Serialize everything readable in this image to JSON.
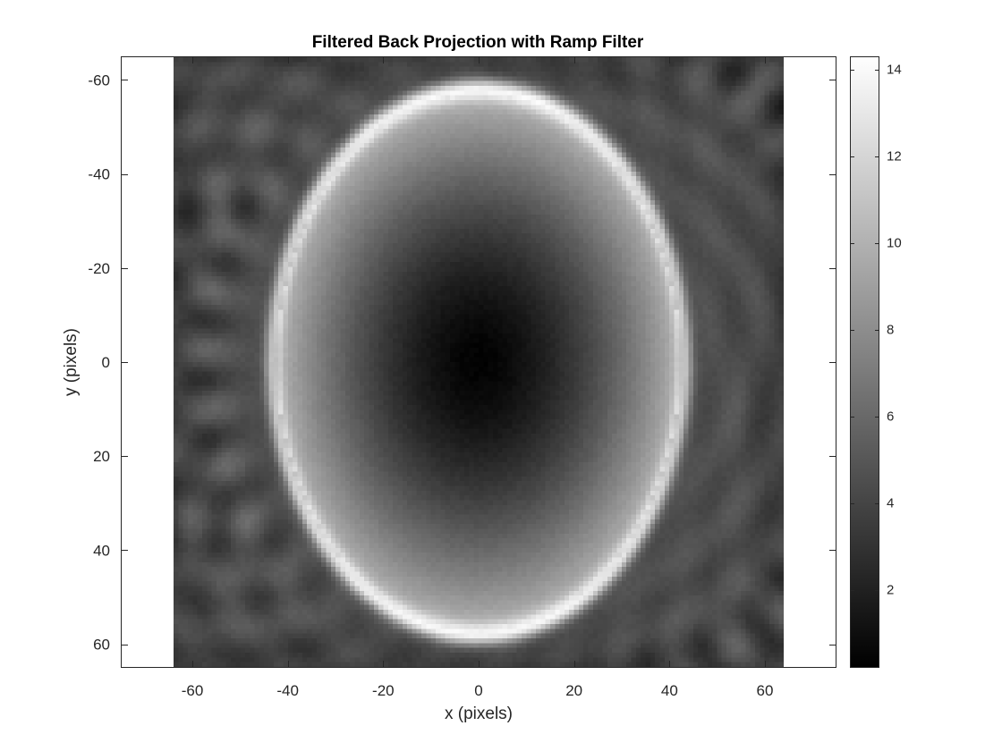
{
  "chart_data": {
    "type": "heatmap",
    "title": "Filtered Back Projection with Ramp Filter",
    "xlabel": "x (pixels)",
    "ylabel": "y (pixels)",
    "xlim": [
      -75,
      75
    ],
    "ylim": [
      -65,
      65
    ],
    "y_direction": "reverse",
    "image_extent_x": [
      -64,
      64
    ],
    "image_extent_y": [
      -64,
      64
    ],
    "x_ticks": [
      -60,
      -40,
      -20,
      0,
      20,
      40,
      60
    ],
    "y_ticks": [
      -60,
      -40,
      -20,
      0,
      20,
      40,
      60
    ],
    "colormap": "gray",
    "colorbar": {
      "range": [
        0.2,
        14.3
      ],
      "ticks": [
        2,
        4,
        6,
        8,
        10,
        12,
        14
      ],
      "location": "right"
    },
    "features": {
      "background_level": 4.5,
      "ellipse": {
        "center": [
          0,
          0
        ],
        "semi_axis_x": 43,
        "semi_axis_y": 57,
        "rim_peak_value": 14.2,
        "interior_center_value": 0.3,
        "interior_edge_value": 10.5
      },
      "streak_artifacts": "diagonal ramp-filter streaks outside the ellipse"
    },
    "grid": false
  }
}
